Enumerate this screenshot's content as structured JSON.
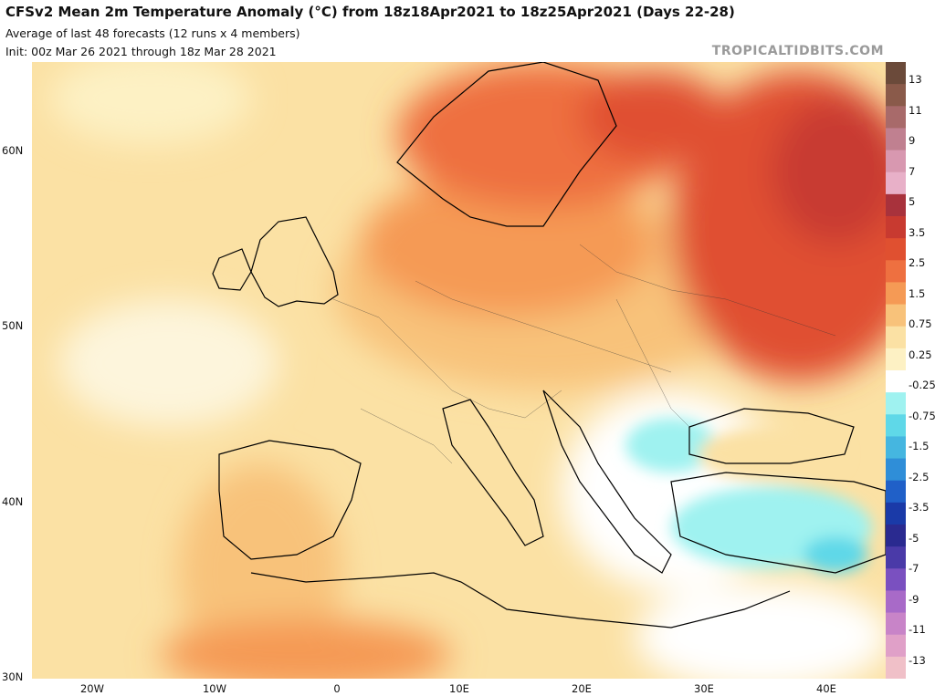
{
  "header": {
    "title": "CFSv2 Mean 2m Temperature Anomaly (°C) from 18z18Apr2021 to 18z25Apr2021 (Days 22-28)",
    "subtitle1": "Average of last 48 forecasts (12 runs x 4 members)",
    "subtitle2": "Init: 00z Mar 26 2021 through 18z Mar 28 2021",
    "brand": "TROPICALTIDBITS.COM"
  },
  "map": {
    "lat_labels": [
      "60N",
      "50N",
      "40N",
      "30N"
    ],
    "lon_labels": [
      "20W",
      "10W",
      "0",
      "10E",
      "20E",
      "30E",
      "40E"
    ],
    "regions": {
      "scandinavia_russia": "warm anomaly (+2.5 to +3.5)",
      "central_europe": "moderate warm anomaly (+1.5)",
      "western_europe": "slight warm anomaly (+0.25 to +0.75)",
      "balkans_turkey": "cool anomaly (-0.25 to -1.5)"
    }
  },
  "colorbar": {
    "labels": [
      "13",
      "11",
      "9",
      "7",
      "5",
      "3.5",
      "2.5",
      "1.5",
      "0.75",
      "0.25",
      "-0.25",
      "-0.75",
      "-1.5",
      "-2.5",
      "-3.5",
      "-5",
      "-7",
      "-9",
      "-11",
      "-13"
    ],
    "colors": [
      "#6b4a3a",
      "#8a5a4a",
      "#a86a6a",
      "#c08090",
      "#d898b0",
      "#e8b0c8",
      "#a8323c",
      "#c83a30",
      "#e05030",
      "#ee7040",
      "#f59a55",
      "#f8c27a",
      "#fbe1a4",
      "#fdf1c4",
      "#ffffff",
      "#9ff2f0",
      "#5fd8e8",
      "#45b6e0",
      "#2f8ed8",
      "#2060c8",
      "#1a3aa8",
      "#2a2a90",
      "#4a3aa8",
      "#7a50c0",
      "#a86ac8",
      "#c884c8",
      "#e0a0c8",
      "#f0c0c8"
    ]
  }
}
